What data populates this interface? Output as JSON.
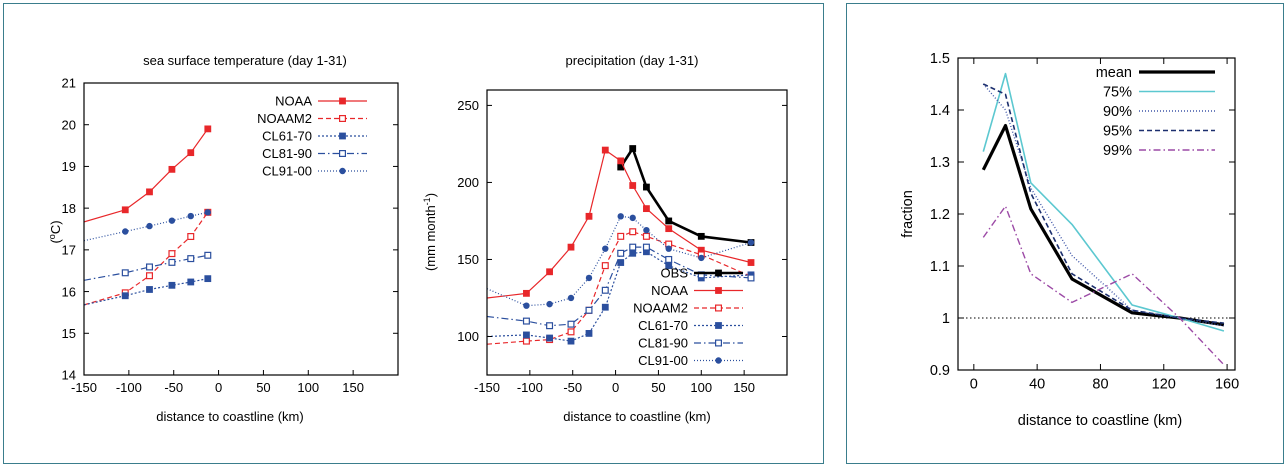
{
  "chart_data": [
    {
      "type": "line",
      "title": "sea surface temperature (day 1-31)",
      "xlabel": "distance to coastline (km)",
      "ylabel": "(°C)",
      "ylabel_parts": {
        "open": "(",
        "sup": "o",
        "rest": "C)"
      },
      "xlim": [
        -150,
        200
      ],
      "ylim": [
        14,
        21
      ],
      "xticks": [
        "-150",
        "-100",
        "-50",
        "0",
        "50",
        "100",
        "150"
      ],
      "xtick_values": [
        -150,
        -100,
        -50,
        0,
        50,
        100,
        150
      ],
      "yticks": [
        "14",
        "15",
        "16",
        "17",
        "18",
        "19",
        "20",
        "21"
      ],
      "ytick_values": [
        14,
        15,
        16,
        17,
        18,
        19,
        20,
        21
      ],
      "legend_position": "top-right",
      "series": [
        {
          "name": "NOAA",
          "color": "#e8272a",
          "dash": "solid",
          "marker": "square-filled",
          "line_x": [
            -150,
            -104,
            -77,
            -52,
            -31,
            -12
          ],
          "line_y": [
            17.67,
            17.96,
            18.39,
            18.93,
            19.33,
            19.9
          ],
          "marker_x": [
            -104,
            -77,
            -52,
            -31,
            -12
          ],
          "marker_y": [
            17.96,
            18.39,
            18.93,
            19.33,
            19.9
          ]
        },
        {
          "name": "NOAAM2",
          "color": "#e8272a",
          "dash": "dashed",
          "marker": "square-open",
          "line_x": [
            -150,
            -104,
            -77,
            -52,
            -31,
            -12
          ],
          "line_y": [
            15.68,
            15.97,
            16.38,
            16.91,
            17.32,
            17.9
          ],
          "marker_x": [
            -104,
            -77,
            -52,
            -31,
            -12
          ],
          "marker_y": [
            15.97,
            16.38,
            16.91,
            17.32,
            17.9
          ]
        },
        {
          "name": "CL61-70",
          "color": "#2b4f9e",
          "dash": "dotted",
          "marker": "square-filled",
          "line_x": [
            -150,
            -104,
            -77,
            -52,
            -31,
            -12
          ],
          "line_y": [
            15.68,
            15.9,
            16.05,
            16.15,
            16.23,
            16.31
          ],
          "marker_x": [
            -104,
            -77,
            -52,
            -31,
            -12
          ],
          "marker_y": [
            15.9,
            16.05,
            16.15,
            16.23,
            16.31
          ]
        },
        {
          "name": "CL81-90",
          "color": "#2b4f9e",
          "dash": "dashdot",
          "marker": "square-open",
          "line_x": [
            -150,
            -104,
            -77,
            -52,
            -31,
            -12
          ],
          "line_y": [
            16.27,
            16.45,
            16.59,
            16.7,
            16.79,
            16.87
          ],
          "marker_x": [
            -104,
            -77,
            -52,
            -31,
            -12
          ],
          "marker_y": [
            16.45,
            16.59,
            16.7,
            16.79,
            16.87
          ]
        },
        {
          "name": "CL91-00",
          "color": "#2b4f9e",
          "dash": "finedot",
          "marker": "circle-filled",
          "line_x": [
            -150,
            -104,
            -77,
            -52,
            -31,
            -12
          ],
          "line_y": [
            17.22,
            17.44,
            17.57,
            17.7,
            17.81,
            17.9
          ],
          "marker_x": [
            -104,
            -77,
            -52,
            -31,
            -12
          ],
          "marker_y": [
            17.44,
            17.57,
            17.7,
            17.81,
            17.9
          ]
        }
      ]
    },
    {
      "type": "line",
      "title": "precipitation  (day 1-31)",
      "xlabel": "distance to coastline (km)",
      "ylabel": "(mm month⁻¹)",
      "ylabel_parts": {
        "open": "(mm month",
        "sup": "-1",
        "rest": ")"
      },
      "xlim": [
        -150,
        200
      ],
      "ylim": [
        75,
        260
      ],
      "xticks": [
        "-150",
        "-100",
        "-50",
        "0",
        "50",
        "100",
        "150"
      ],
      "xtick_values": [
        -150,
        -100,
        -50,
        0,
        50,
        100,
        150
      ],
      "yticks": [
        "100",
        "150",
        "200",
        "250"
      ],
      "ytick_values": [
        100,
        150,
        200,
        250
      ],
      "legend_position": "bottom-right",
      "series": [
        {
          "name": "OBS",
          "color": "#000000",
          "dash": "solid",
          "width": 2.6,
          "marker": "square-filled",
          "line_x": [
            6,
            20,
            36,
            62,
            100,
            158
          ],
          "line_y": [
            210,
            222,
            197,
            175,
            165,
            161
          ],
          "marker_x": [
            6,
            20,
            36,
            62,
            100,
            158
          ],
          "marker_y": [
            210,
            222,
            197,
            175,
            165,
            161
          ]
        },
        {
          "name": "NOAA",
          "color": "#e8272a",
          "dash": "solid",
          "marker": "square-filled",
          "line_x": [
            -150,
            -104,
            -77,
            -52,
            -31,
            -12,
            6,
            20,
            36,
            62,
            100,
            158
          ],
          "line_y": [
            125,
            128,
            142,
            158,
            178,
            221,
            214,
            198,
            183,
            170,
            156,
            148
          ],
          "marker_x": [
            -104,
            -77,
            -52,
            -31,
            -12,
            6,
            20,
            36,
            62,
            100,
            158
          ],
          "marker_y": [
            128,
            142,
            158,
            178,
            221,
            214,
            198,
            183,
            170,
            156,
            148
          ]
        },
        {
          "name": "NOAAM2",
          "color": "#e8272a",
          "dash": "dashed",
          "marker": "square-open",
          "line_x": [
            -150,
            -104,
            -77,
            -52,
            -31,
            -12,
            6,
            20,
            36,
            62,
            100,
            158
          ],
          "line_y": [
            95,
            97,
            98,
            103,
            117,
            146,
            165,
            168,
            165,
            160,
            153,
            139
          ],
          "marker_x": [
            -104,
            -77,
            -52,
            -31,
            -12,
            6,
            20,
            36,
            62,
            100,
            158
          ],
          "marker_y": [
            97,
            98,
            103,
            117,
            146,
            165,
            168,
            165,
            160,
            153,
            139
          ]
        },
        {
          "name": "CL61-70",
          "color": "#2b4f9e",
          "dash": "dotted",
          "marker": "square-filled",
          "line_x": [
            -150,
            -104,
            -77,
            -52,
            -31,
            -12,
            6,
            20,
            36,
            62,
            100,
            158
          ],
          "line_y": [
            100,
            101,
            99,
            97,
            102,
            119,
            148,
            154,
            155,
            146,
            138,
            140
          ],
          "marker_x": [
            -104,
            -77,
            -52,
            -31,
            -12,
            6,
            20,
            36,
            62,
            100,
            158
          ],
          "marker_y": [
            101,
            99,
            97,
            102,
            119,
            148,
            154,
            155,
            146,
            138,
            140
          ]
        },
        {
          "name": "CL81-90",
          "color": "#2b4f9e",
          "dash": "dashdot",
          "marker": "square-open",
          "line_x": [
            -150,
            -104,
            -77,
            -52,
            -31,
            -12,
            6,
            20,
            36,
            62,
            100,
            158
          ],
          "line_y": [
            113,
            110,
            107,
            108,
            117,
            130,
            154,
            158,
            158,
            150,
            140,
            138
          ],
          "marker_x": [
            -104,
            -77,
            -52,
            -31,
            -12,
            6,
            20,
            36,
            62,
            100,
            158
          ],
          "marker_y": [
            110,
            107,
            108,
            117,
            130,
            154,
            158,
            158,
            150,
            140,
            138
          ]
        },
        {
          "name": "CL91-00",
          "color": "#2b4f9e",
          "dash": "finedot",
          "marker": "circle-filled",
          "line_x": [
            -150,
            -104,
            -77,
            -52,
            -31,
            -12,
            6,
            20,
            36,
            62,
            100,
            158
          ],
          "line_y": [
            131,
            120,
            121,
            125,
            138,
            157,
            178,
            177,
            169,
            157,
            151,
            161
          ],
          "marker_x": [
            -104,
            -77,
            -52,
            -31,
            -12,
            6,
            20,
            36,
            62,
            100,
            158
          ],
          "marker_y": [
            120,
            121,
            125,
            138,
            157,
            178,
            177,
            169,
            157,
            151,
            161
          ]
        }
      ]
    },
    {
      "type": "line",
      "title": "",
      "xlabel": "distance to coastline (km)",
      "ylabel": "fraction",
      "xlim": [
        -10,
        165
      ],
      "ylim": [
        0.9,
        1.5
      ],
      "xticks": [
        "0",
        "40",
        "80",
        "120",
        "160"
      ],
      "xtick_values": [
        0,
        40,
        80,
        120,
        160
      ],
      "yticks": [
        "0.9",
        "1",
        "1.1",
        "1.2",
        "1.3",
        "1.4",
        "1.5"
      ],
      "ytick_values": [
        0.9,
        1.0,
        1.1,
        1.2,
        1.3,
        1.4,
        1.5
      ],
      "reference_line": 1.0,
      "legend_position": "top-right",
      "series": [
        {
          "name": "mean",
          "color": "#000000",
          "dash": "solid",
          "width": 3.2,
          "x": [
            6,
            20,
            36,
            62,
            100,
            130,
            158
          ],
          "y": [
            1.285,
            1.37,
            1.21,
            1.075,
            1.01,
            1.0,
            0.987
          ]
        },
        {
          "name": "75%",
          "color": "#5cc8d0",
          "dash": "solid",
          "width": 1.6,
          "x": [
            6,
            20,
            36,
            62,
            100,
            130,
            158
          ],
          "y": [
            1.32,
            1.47,
            1.26,
            1.18,
            1.025,
            1.0,
            0.975
          ]
        },
        {
          "name": "90%",
          "color": "#3f56a8",
          "dash": "finedot",
          "width": 1.4,
          "x": [
            6,
            20,
            36,
            62,
            100,
            130,
            158
          ],
          "y": [
            1.45,
            1.4,
            1.25,
            1.12,
            1.015,
            1.0,
            0.985
          ]
        },
        {
          "name": "95%",
          "color": "#1c2f6e",
          "dash": "dashed",
          "width": 1.6,
          "x": [
            6,
            20,
            36,
            62,
            100,
            130,
            158
          ],
          "y": [
            1.45,
            1.43,
            1.24,
            1.085,
            1.015,
            1.0,
            0.99
          ]
        },
        {
          "name": "99%",
          "color": "#9c4aa6",
          "dash": "dashdot",
          "width": 1.4,
          "x": [
            6,
            20,
            36,
            62,
            100,
            130,
            158
          ],
          "y": [
            1.155,
            1.215,
            1.085,
            1.03,
            1.085,
            1.0,
            0.91
          ]
        }
      ]
    }
  ]
}
